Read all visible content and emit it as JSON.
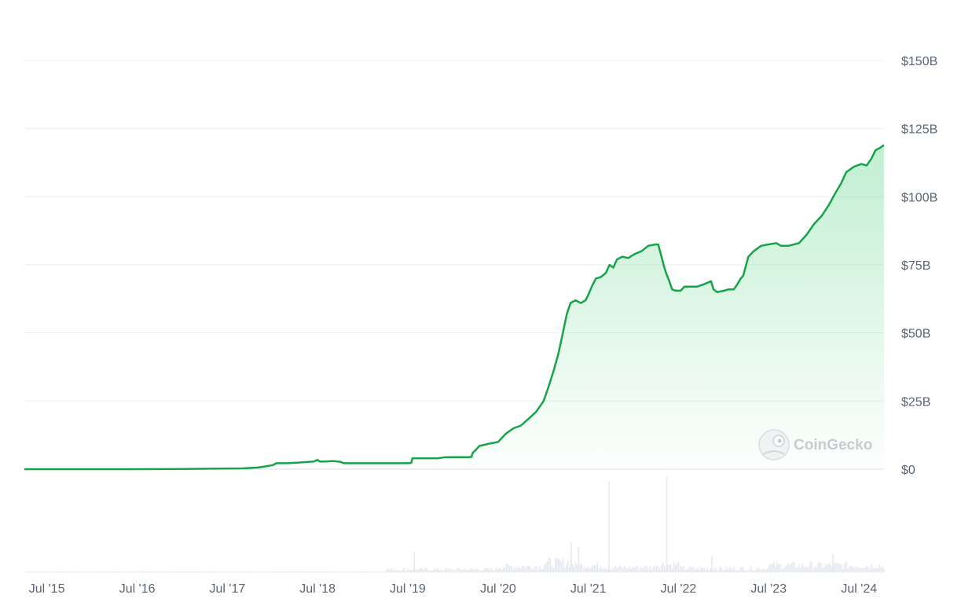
{
  "chart_data": {
    "type": "area",
    "title": "",
    "xlabel": "",
    "ylabel": "",
    "ylim": [
      0,
      150
    ],
    "y_unit": "billion USD",
    "y_ticks": [
      {
        "value": 0,
        "label": "$0"
      },
      {
        "value": 25,
        "label": "$25B"
      },
      {
        "value": 50,
        "label": "$50B"
      },
      {
        "value": 75,
        "label": "$75B"
      },
      {
        "value": 100,
        "label": "$100B"
      },
      {
        "value": 125,
        "label": "$125B"
      },
      {
        "value": 150,
        "label": "$150B"
      }
    ],
    "x_range": [
      "2015-04-01",
      "2024-10-10"
    ],
    "x_ticks": [
      {
        "date": "2015-07-01",
        "label": "Jul '15"
      },
      {
        "date": "2016-07-01",
        "label": "Jul '16"
      },
      {
        "date": "2017-07-01",
        "label": "Jul '17"
      },
      {
        "date": "2018-07-01",
        "label": "Jul '18"
      },
      {
        "date": "2019-07-01",
        "label": "Jul '19"
      },
      {
        "date": "2020-07-01",
        "label": "Jul '20"
      },
      {
        "date": "2021-07-01",
        "label": "Jul '21"
      },
      {
        "date": "2022-07-01",
        "label": "Jul '22"
      },
      {
        "date": "2023-07-01",
        "label": "Jul '23"
      },
      {
        "date": "2024-07-01",
        "label": "Jul '24"
      }
    ],
    "grid": true,
    "legend": "none",
    "line_color": "#16a34a",
    "fill_color": "#22c55e",
    "series": [
      {
        "points": [
          [
            "2015-04-01",
            0.0
          ],
          [
            "2016-06-01",
            0.0
          ],
          [
            "2017-01-01",
            0.1
          ],
          [
            "2017-06-01",
            0.2
          ],
          [
            "2017-09-01",
            0.3
          ],
          [
            "2017-11-01",
            0.6
          ],
          [
            "2017-12-01",
            1.0
          ],
          [
            "2018-01-01",
            1.5
          ],
          [
            "2018-01-15",
            2.2
          ],
          [
            "2018-03-01",
            2.2
          ],
          [
            "2018-05-01",
            2.5
          ],
          [
            "2018-06-15",
            2.8
          ],
          [
            "2018-07-01",
            3.4
          ],
          [
            "2018-07-10",
            2.8
          ],
          [
            "2018-08-01",
            2.8
          ],
          [
            "2018-09-01",
            3.0
          ],
          [
            "2018-10-01",
            2.7
          ],
          [
            "2018-10-15",
            2.2
          ],
          [
            "2019-01-01",
            2.2
          ],
          [
            "2019-07-01",
            2.2
          ],
          [
            "2019-07-15",
            2.3
          ],
          [
            "2019-07-20",
            4.0
          ],
          [
            "2019-11-01",
            4.0
          ],
          [
            "2019-12-01",
            4.4
          ],
          [
            "2020-03-01",
            4.4
          ],
          [
            "2020-03-15",
            4.5
          ],
          [
            "2020-03-20",
            6.0
          ],
          [
            "2020-04-01",
            7.0
          ],
          [
            "2020-04-15",
            8.5
          ],
          [
            "2020-06-01",
            9.5
          ],
          [
            "2020-07-01",
            10.0
          ],
          [
            "2020-08-01",
            13.0
          ],
          [
            "2020-09-01",
            15.0
          ],
          [
            "2020-10-01",
            16.0
          ],
          [
            "2020-11-01",
            18.5
          ],
          [
            "2020-12-01",
            21.0
          ],
          [
            "2021-01-01",
            25.0
          ],
          [
            "2021-01-20",
            30.0
          ],
          [
            "2021-02-10",
            36.0
          ],
          [
            "2021-03-01",
            42.0
          ],
          [
            "2021-03-20",
            50.0
          ],
          [
            "2021-04-05",
            57.0
          ],
          [
            "2021-04-20",
            61.0
          ],
          [
            "2021-05-10",
            62.0
          ],
          [
            "2021-06-01",
            61.0
          ],
          [
            "2021-06-20",
            62.0
          ],
          [
            "2021-07-01",
            64.0
          ],
          [
            "2021-07-15",
            67.0
          ],
          [
            "2021-08-01",
            70.0
          ],
          [
            "2021-08-20",
            70.5
          ],
          [
            "2021-09-10",
            72.0
          ],
          [
            "2021-09-25",
            75.0
          ],
          [
            "2021-10-10",
            74.0
          ],
          [
            "2021-10-25",
            77.0
          ],
          [
            "2021-11-15",
            78.0
          ],
          [
            "2021-12-10",
            77.5
          ],
          [
            "2022-01-05",
            79.0
          ],
          [
            "2022-02-01",
            80.0
          ],
          [
            "2022-03-01",
            82.0
          ],
          [
            "2022-04-01",
            82.5
          ],
          [
            "2022-04-10",
            82.5
          ],
          [
            "2022-05-05",
            74.0
          ],
          [
            "2022-05-12",
            72.0
          ],
          [
            "2022-05-25",
            69.0
          ],
          [
            "2022-06-05",
            66.0
          ],
          [
            "2022-06-20",
            65.5
          ],
          [
            "2022-07-10",
            65.5
          ],
          [
            "2022-07-25",
            67.0
          ],
          [
            "2022-08-20",
            67.0
          ],
          [
            "2022-09-15",
            67.0
          ],
          [
            "2022-10-15",
            68.0
          ],
          [
            "2022-11-10",
            69.0
          ],
          [
            "2022-11-20",
            66.0
          ],
          [
            "2022-12-05",
            65.0
          ],
          [
            "2023-01-01",
            65.5
          ],
          [
            "2023-01-20",
            66.0
          ],
          [
            "2023-02-10",
            66.0
          ],
          [
            "2023-02-25",
            68.0
          ],
          [
            "2023-03-10",
            70.0
          ],
          [
            "2023-03-20",
            71.0
          ],
          [
            "2023-04-01",
            75.0
          ],
          [
            "2023-04-10",
            78.0
          ],
          [
            "2023-05-01",
            80.0
          ],
          [
            "2023-06-01",
            82.0
          ],
          [
            "2023-07-01",
            82.5
          ],
          [
            "2023-08-01",
            83.0
          ],
          [
            "2023-08-20",
            82.0
          ],
          [
            "2023-09-20",
            82.0
          ],
          [
            "2023-11-01",
            83.0
          ],
          [
            "2023-12-01",
            86.0
          ],
          [
            "2024-01-01",
            90.0
          ],
          [
            "2024-02-01",
            93.0
          ],
          [
            "2024-03-01",
            97.0
          ],
          [
            "2024-03-25",
            101.0
          ],
          [
            "2024-04-20",
            105.0
          ],
          [
            "2024-05-10",
            109.0
          ],
          [
            "2024-06-10",
            111.0
          ],
          [
            "2024-07-10",
            112.0
          ],
          [
            "2024-08-01",
            111.5
          ],
          [
            "2024-08-20",
            114.0
          ],
          [
            "2024-09-05",
            117.0
          ],
          [
            "2024-09-25",
            118.0
          ],
          [
            "2024-10-10",
            119.0
          ]
        ]
      }
    ],
    "volume_bars": {
      "color": "#e6e9ee",
      "bins": [
        {
          "from": "2015-04-01",
          "to": "2019-04-01",
          "level": 0.005
        },
        {
          "from": "2019-04-01",
          "to": "2020-07-01",
          "level": 0.03
        },
        {
          "from": "2020-07-01",
          "to": "2021-01-01",
          "level": 0.06
        },
        {
          "from": "2021-01-01",
          "to": "2021-05-01",
          "level": 0.1
        },
        {
          "from": "2021-05-01",
          "to": "2021-09-01",
          "level": 0.07
        },
        {
          "from": "2021-09-01",
          "to": "2022-04-01",
          "level": 0.05
        },
        {
          "from": "2022-04-01",
          "to": "2022-07-01",
          "level": 0.08
        },
        {
          "from": "2022-07-01",
          "to": "2023-07-01",
          "level": 0.04
        },
        {
          "from": "2023-07-01",
          "to": "2024-10-10",
          "level": 0.07
        }
      ],
      "spikes": [
        {
          "date": "2019-07-25",
          "level": 0.2
        },
        {
          "date": "2021-04-20",
          "level": 0.3
        },
        {
          "date": "2021-05-20",
          "level": 0.25
        },
        {
          "date": "2021-09-20",
          "level": 0.9
        },
        {
          "date": "2022-05-12",
          "level": 0.95
        },
        {
          "date": "2022-11-10",
          "level": 0.15
        },
        {
          "date": "2024-03-15",
          "level": 0.18
        }
      ]
    }
  },
  "watermark": {
    "text": "CoinGecko",
    "icon": "coingecko-logo-icon"
  }
}
